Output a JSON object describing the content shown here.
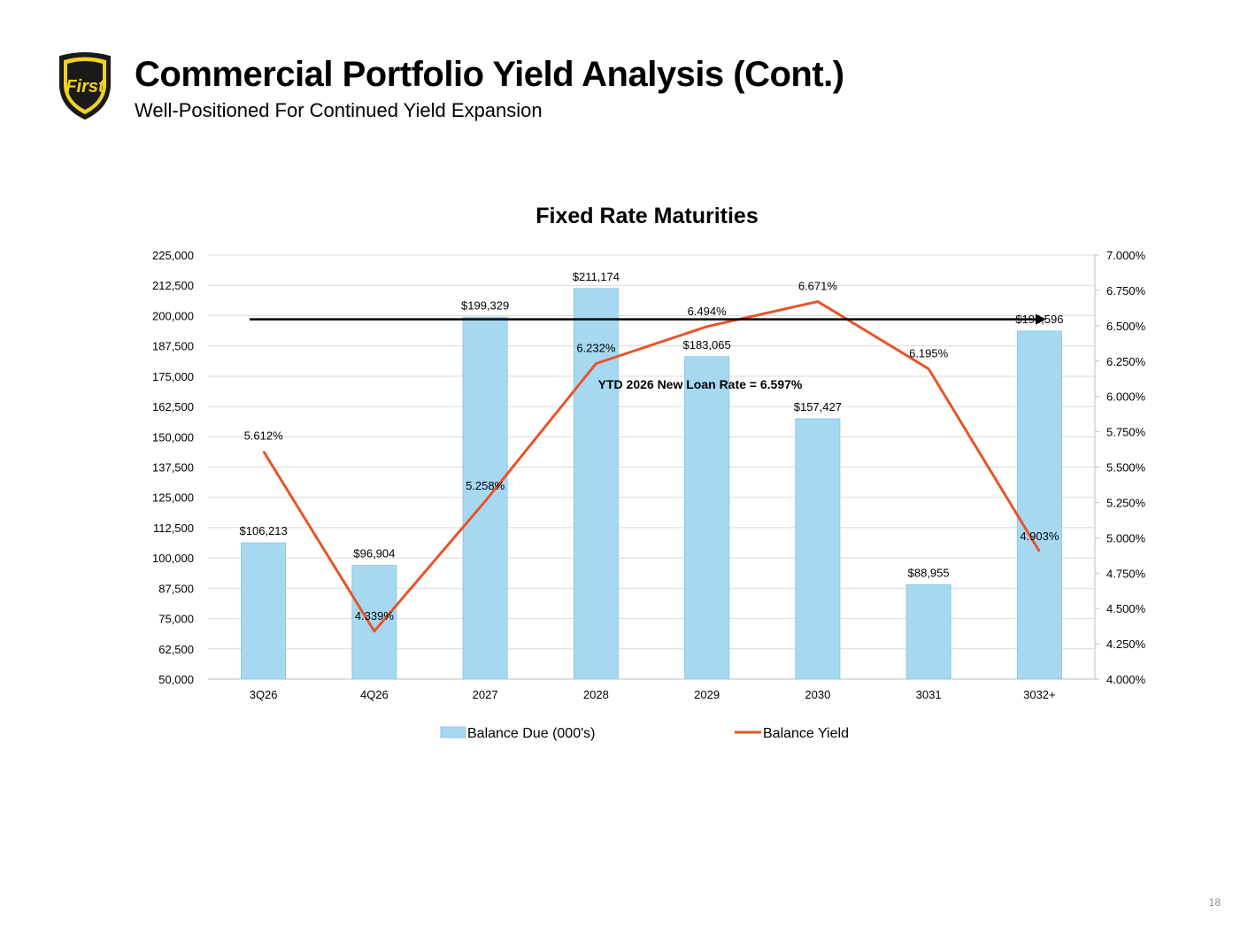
{
  "header": {
    "title": "Commercial Portfolio Yield Analysis (Cont.)",
    "subtitle": "Well-Positioned For Continued Yield Expansion",
    "logo_text": "First"
  },
  "page_number": "18",
  "colors": {
    "bar_fill": "#a6d9f1",
    "bar_stroke": "#8cc8e6",
    "line": "#e8542a",
    "arrow": "#000000",
    "gridline": "#d9d9d9"
  },
  "chart_data": {
    "type": "bar",
    "title": "Fixed Rate Maturities",
    "categories": [
      "3Q26",
      "4Q26",
      "2027",
      "2028",
      "2029",
      "2030",
      "3031",
      "3032+"
    ],
    "y_ticks": [
      "225,000",
      "212,500",
      "200,000",
      "187,500",
      "175,000",
      "162,500",
      "150,000",
      "137,500",
      "125,000",
      "112,500",
      "100,000",
      "87,500",
      "75,000",
      "62,500",
      "50,000"
    ],
    "y2_ticks": [
      "7.000%",
      "6.750%",
      "6.500%",
      "6.250%",
      "6.000%",
      "5.750%",
      "5.500%",
      "5.250%",
      "5.000%",
      "4.750%",
      "4.500%",
      "4.250%",
      "4.000%"
    ],
    "ylim": [
      50000,
      225000
    ],
    "y2lim": [
      4.0,
      7.0
    ],
    "grid": true,
    "legend_position": "bottom",
    "series": [
      {
        "name": "Balance Due (000's)",
        "type": "bar",
        "axis": "left",
        "values": [
          106213,
          96904,
          199329,
          211174,
          183065,
          157427,
          88955,
          193596
        ],
        "labels": [
          "$106,213",
          "$96,904",
          "$199,329",
          "$211,174",
          "$183,065",
          "$157,427",
          "$88,955",
          "$193,596"
        ]
      },
      {
        "name": "Balance Yield",
        "type": "line",
        "axis": "right",
        "values": [
          5.612,
          4.339,
          5.258,
          6.232,
          6.494,
          6.671,
          6.195,
          4.903
        ],
        "labels": [
          "5.612%",
          "4.339%",
          "5.258%",
          "6.232%",
          "6.494%",
          "6.671%",
          "6.195%",
          "4.903%"
        ]
      }
    ],
    "annotation": {
      "text": "YTD 2026 New Loan Rate = 6.597%",
      "y2_value": 6.545
    }
  }
}
